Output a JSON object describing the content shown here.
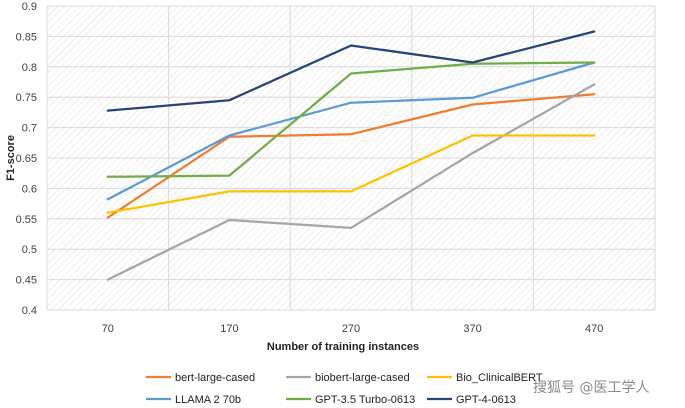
{
  "chart_data": {
    "type": "line",
    "title": "",
    "xlabel": "Number of training instances",
    "ylabel": "F1-score",
    "categories": [
      "70",
      "170",
      "270",
      "370",
      "470"
    ],
    "ylim": [
      0.4,
      0.9
    ],
    "yticks": [
      "0.4",
      "0.45",
      "0.5",
      "0.55",
      "0.6",
      "0.65",
      "0.7",
      "0.75",
      "0.8",
      "0.85",
      "0.9"
    ],
    "grid": true,
    "legend_position": "bottom",
    "series": [
      {
        "name": "bert-large-cased",
        "color": "#ED7D31",
        "values": [
          0.552,
          0.685,
          0.689,
          0.738,
          0.755
        ]
      },
      {
        "name": "biobert-large-cased",
        "color": "#A5A5A5",
        "values": [
          0.45,
          0.548,
          0.535,
          0.658,
          0.771
        ]
      },
      {
        "name": "Bio_ClinicalBERT",
        "color": "#FFC000",
        "values": [
          0.56,
          0.595,
          0.595,
          0.687,
          0.687
        ]
      },
      {
        "name": "LLAMA 2 70b",
        "color": "#5B9BD5",
        "values": [
          0.582,
          0.687,
          0.741,
          0.749,
          0.807
        ]
      },
      {
        "name": "GPT-3.5 Turbo-0613",
        "color": "#70AD47",
        "values": [
          0.619,
          0.621,
          0.789,
          0.805,
          0.807
        ]
      },
      {
        "name": "GPT-4-0613",
        "color": "#264478",
        "values": [
          0.728,
          0.745,
          0.835,
          0.807,
          0.858
        ]
      }
    ]
  },
  "watermark": {
    "text": "搜狐号 @医工学人"
  }
}
